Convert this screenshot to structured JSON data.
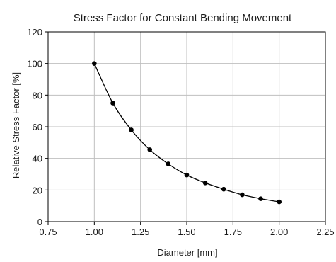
{
  "chart_data": {
    "type": "line",
    "title": "Stress Factor for Constant Bending Movement",
    "xlabel": "Diameter [mm]",
    "ylabel": "Relative Stress Factor [%]",
    "xlim": [
      0.75,
      2.25
    ],
    "ylim": [
      0,
      120
    ],
    "x_ticks": [
      "0.75",
      "1.00",
      "1.25",
      "1.50",
      "1.75",
      "2.00",
      "2.25"
    ],
    "y_ticks": [
      "0",
      "20",
      "40",
      "60",
      "80",
      "100",
      "120"
    ],
    "grid": true,
    "series": [
      {
        "x": [
          1.0,
          1.1,
          1.2,
          1.3,
          1.4,
          1.5,
          1.6,
          1.7,
          1.8,
          1.9,
          2.0
        ],
        "y": [
          100,
          75,
          58,
          45.5,
          36.5,
          29.5,
          24.5,
          20.5,
          17,
          14.5,
          12.5
        ],
        "color": "#000000",
        "marker": "circle"
      }
    ]
  }
}
